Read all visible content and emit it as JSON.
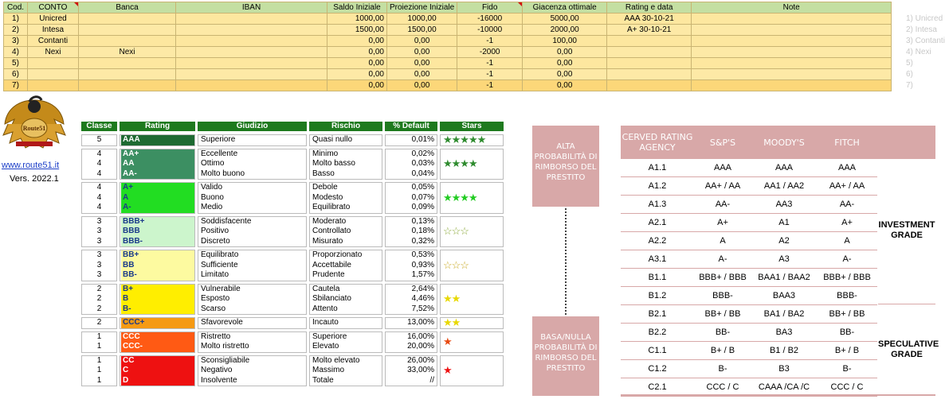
{
  "accounts": {
    "headers": [
      "Cod.",
      "CONTO",
      "Banca",
      "IBAN",
      "Saldo Iniziale",
      "Proiezione Iniziale",
      "Fido",
      "Giacenza ottimale",
      "Rating e data",
      "Note"
    ],
    "rows": [
      {
        "cod": "1)",
        "conto": "Unicred",
        "banca": "",
        "iban": "",
        "saldo": "1000,00",
        "proiezione": "1000,00",
        "fido": "-16000",
        "giacenza": "5000,00",
        "rating": "AAA 30-10-21",
        "note": "",
        "side": "1) Unicred"
      },
      {
        "cod": "2)",
        "conto": "Intesa",
        "banca": "",
        "iban": "",
        "saldo": "1500,00",
        "proiezione": "1500,00",
        "fido": "-10000",
        "giacenza": "2000,00",
        "rating": "A+ 30-10-21",
        "note": "",
        "side": "2) Intesa"
      },
      {
        "cod": "3)",
        "conto": "Contanti",
        "banca": "",
        "iban": "",
        "saldo": "0,00",
        "proiezione": "0,00",
        "fido": "-1",
        "giacenza": "100,00",
        "rating": "",
        "note": "",
        "side": "3) Contanti"
      },
      {
        "cod": "4)",
        "conto": "Nexi",
        "banca": "Nexi",
        "iban": "",
        "saldo": "0,00",
        "proiezione": "0,00",
        "fido": "-2000",
        "giacenza": "0,00",
        "rating": "",
        "note": "",
        "side": "4) Nexi"
      },
      {
        "cod": "5)",
        "conto": "",
        "banca": "",
        "iban": "",
        "saldo": "0,00",
        "proiezione": "0,00",
        "fido": "-1",
        "giacenza": "0,00",
        "rating": "",
        "note": "",
        "side": "5)"
      },
      {
        "cod": "6)",
        "conto": "",
        "banca": "",
        "iban": "",
        "saldo": "0,00",
        "proiezione": "0,00",
        "fido": "-1",
        "giacenza": "0,00",
        "rating": "",
        "note": "",
        "side": "6)"
      },
      {
        "cod": "7)",
        "conto": "",
        "banca": "",
        "iban": "",
        "saldo": "0,00",
        "proiezione": "0,00",
        "fido": "-1",
        "giacenza": "0,00",
        "rating": "",
        "note": "",
        "side": "7)"
      }
    ]
  },
  "logo": {
    "text": "Route51",
    "site": "www.route51.it",
    "version": "Vers. 2022.1"
  },
  "rating_table": {
    "headers": [
      "Classe",
      "Rating",
      "Giudizio",
      "Rischio",
      "% Default",
      "Stars"
    ],
    "groups": [
      {
        "color": "#1e6a32",
        "text_color": "#ffffff",
        "stars": "★★★★★",
        "star_color": "#2e8b2e",
        "rows": [
          {
            "classe": "5",
            "rating": "AAA",
            "giudizio": "Superiore",
            "rischio": "Quasi nullo",
            "default": "0,01%"
          }
        ]
      },
      {
        "color": "#3c8f62",
        "text_color": "#ffffff",
        "stars": "★★★★",
        "star_color": "#2e8b2e",
        "rows": [
          {
            "classe": "4",
            "rating": "AA+",
            "giudizio": "Eccellente",
            "rischio": "Minimo",
            "default": "0,02%"
          },
          {
            "classe": "4",
            "rating": "AA",
            "giudizio": "Ottimo",
            "rischio": "Molto basso",
            "default": "0,03%"
          },
          {
            "classe": "4",
            "rating": "AA-",
            "giudizio": "Molto buono",
            "rischio": "Basso",
            "default": "0,04%"
          }
        ]
      },
      {
        "color": "#22dd22",
        "text_color": "#1a3a8a",
        "stars": "★★★★",
        "star_color": "#22cc22",
        "rows": [
          {
            "classe": "4",
            "rating": "A+",
            "giudizio": "Valido",
            "rischio": "Debole",
            "default": "0,05%"
          },
          {
            "classe": "4",
            "rating": "A",
            "giudizio": "Buono",
            "rischio": "Modesto",
            "default": "0,07%"
          },
          {
            "classe": "4",
            "rating": "A-",
            "giudizio": "Medio",
            "rischio": "Equilibrato",
            "default": "0,09%"
          }
        ]
      },
      {
        "color": "#ccf5cc",
        "text_color": "#1a3a8a",
        "stars": "☆☆☆",
        "star_color": "#8aa838",
        "rows": [
          {
            "classe": "3",
            "rating": "BBB+",
            "giudizio": "Soddisfacente",
            "rischio": "Moderato",
            "default": "0,13%"
          },
          {
            "classe": "3",
            "rating": "BBB",
            "giudizio": "Positivo",
            "rischio": "Controllato",
            "default": "0,18%"
          },
          {
            "classe": "3",
            "rating": "BBB-",
            "giudizio": "Discreto",
            "rischio": "Misurato",
            "default": "0,32%"
          }
        ]
      },
      {
        "color": "#fdfaa0",
        "text_color": "#1a3a8a",
        "stars": "☆☆☆",
        "star_color": "#c8a820",
        "rows": [
          {
            "classe": "3",
            "rating": "BB+",
            "giudizio": "Equilibrato",
            "rischio": "Proporzionato",
            "default": "0,53%"
          },
          {
            "classe": "3",
            "rating": "BB",
            "giudizio": "Sufficiente",
            "rischio": "Accettabile",
            "default": "0,93%"
          },
          {
            "classe": "3",
            "rating": "BB-",
            "giudizio": "Limitato",
            "rischio": "Prudente",
            "default": "1,57%"
          }
        ]
      },
      {
        "color": "#ffee00",
        "text_color": "#1a3a8a",
        "stars": "★★",
        "star_color": "#e8d800",
        "rows": [
          {
            "classe": "2",
            "rating": "B+",
            "giudizio": "Vulnerabile",
            "rischio": "Cautela",
            "default": "2,64%"
          },
          {
            "classe": "2",
            "rating": "B",
            "giudizio": "Esposto",
            "rischio": "Sbilanciato",
            "default": "4,46%"
          },
          {
            "classe": "2",
            "rating": "B-",
            "giudizio": "Scarso",
            "rischio": "Attento",
            "default": "7,52%"
          }
        ]
      },
      {
        "color": "#f59a14",
        "text_color": "#1a3a8a",
        "stars": "★★",
        "star_color": "#e8d800",
        "rows": [
          {
            "classe": "2",
            "rating": "CCC+",
            "giudizio": "Sfavorevole",
            "rischio": "Incauto",
            "default": "13,00%"
          }
        ]
      },
      {
        "color": "#ff5a14",
        "text_color": "#ffffff",
        "stars": "★",
        "star_color": "#e84a10",
        "rows": [
          {
            "classe": "1",
            "rating": "CCC",
            "giudizio": "Ristretto",
            "rischio": "Superiore",
            "default": "16,00%"
          },
          {
            "classe": "1",
            "rating": "CCC-",
            "giudizio": "Molto ristretto",
            "rischio": "Elevato",
            "default": "20,00%"
          }
        ]
      },
      {
        "color": "#ee1111",
        "text_color": "#ffffff",
        "stars": "★",
        "star_color": "#ee1111",
        "rows": [
          {
            "classe": "1",
            "rating": "CC",
            "giudizio": "Sconsigliabile",
            "rischio": "Molto elevato",
            "default": "26,00%"
          },
          {
            "classe": "1",
            "rating": "C",
            "giudizio": "Negativo",
            "rischio": "Massimo",
            "default": "33,00%"
          },
          {
            "classe": "1",
            "rating": "D",
            "giudizio": "Insolvente",
            "rischio": "Totale",
            "default": "//"
          }
        ]
      }
    ]
  },
  "probability": {
    "alta": "ALTA PROBABILITÀ DI RIMBORSO DEL PRESTITO",
    "bassa": "BASA/NULLA PROBABILITÀ DI RIMBORSO DEL PRESTITO"
  },
  "agency": {
    "headers": [
      "CERVED RATING AGENCY",
      "S&P'S",
      "MOODY'S",
      "FITCH"
    ],
    "rows": [
      [
        "A1.1",
        "AAA",
        "AAA",
        "AAA"
      ],
      [
        "A1.2",
        "AA+ / AA",
        "AA1 / AA2",
        "AA+ / AA"
      ],
      [
        "A1.3",
        "AA-",
        "AA3",
        "AA-"
      ],
      [
        "A2.1",
        "A+",
        "A1",
        "A+"
      ],
      [
        "A2.2",
        "A",
        "A2",
        "A"
      ],
      [
        "A3.1",
        "A-",
        "A3",
        "A-"
      ],
      [
        "B1.1",
        "BBB+ / BBB",
        "BAA1 / BAA2",
        "BBB+ / BBB"
      ],
      [
        "B1.2",
        "BBB-",
        "BAA3",
        "BBB-"
      ],
      [
        "B2.1",
        "BB+ / BB",
        "BA1 / BA2",
        "BB+ / BB"
      ],
      [
        "B2.2",
        "BB-",
        "BA3",
        "BB-"
      ],
      [
        "C1.1",
        "B+ / B",
        "B1 / B2",
        "B+ / B"
      ],
      [
        "C1.2",
        "B-",
        "B3",
        "B-"
      ],
      [
        "C2.1",
        "CCC / C",
        "CAAA /CA /C",
        "CCC / C"
      ]
    ],
    "investment_grade": "INVESTMENT GRADE",
    "speculative_grade": "SPECULATIVE GRADE"
  }
}
